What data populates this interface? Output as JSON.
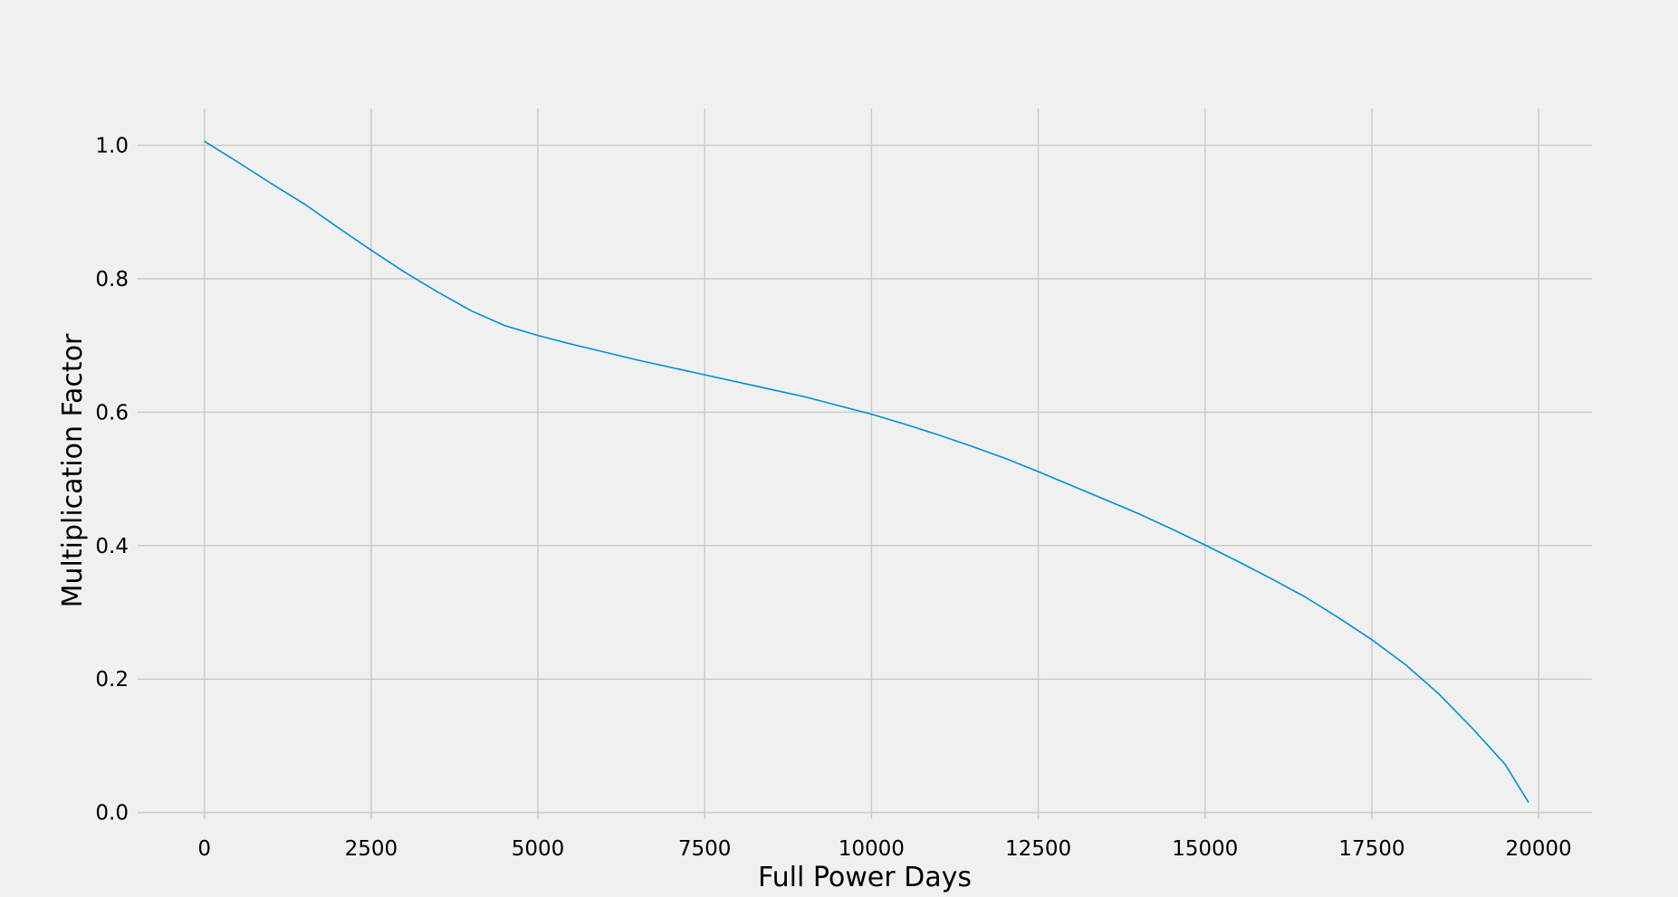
{
  "chart_data": {
    "type": "line",
    "title": "",
    "xlabel": "Full Power Days",
    "ylabel": "Multiplication Factor",
    "xlim": [
      -1000,
      20800
    ],
    "ylim": [
      -0.01,
      1.055
    ],
    "xticks": [
      0,
      2500,
      5000,
      7500,
      10000,
      12500,
      15000,
      17500,
      20000
    ],
    "xtick_labels": [
      "0",
      "2500",
      "5000",
      "7500",
      "10000",
      "12500",
      "15000",
      "17500",
      "20000"
    ],
    "yticks": [
      0.0,
      0.2,
      0.4,
      0.6,
      0.8,
      1.0
    ],
    "ytick_labels": [
      "0.0",
      "0.2",
      "0.4",
      "0.6",
      "0.8",
      "1.0"
    ],
    "grid": true,
    "legend": "none",
    "colors": {
      "background": "#f0f0f0",
      "line": "#008fd5",
      "grid": "#cbcbcb"
    },
    "series": [
      {
        "x": [
          0,
          500,
          1000,
          1500,
          2000,
          2500,
          3000,
          3500,
          4000,
          4500,
          5000,
          5500,
          6000,
          6500,
          7000,
          7500,
          8000,
          8500,
          9000,
          9500,
          10000,
          10500,
          11000,
          11500,
          12000,
          12500,
          13000,
          13500,
          14000,
          14500,
          15000,
          15500,
          16000,
          16500,
          17000,
          17500,
          18000,
          18500,
          19000,
          19500,
          19850
        ],
        "y": [
          1.006,
          0.975,
          0.943,
          0.912,
          0.877,
          0.843,
          0.81,
          0.78,
          0.752,
          0.73,
          0.715,
          0.702,
          0.69,
          0.678,
          0.667,
          0.656,
          0.645,
          0.634,
          0.623,
          0.61,
          0.597,
          0.582,
          0.566,
          0.549,
          0.531,
          0.511,
          0.49,
          0.469,
          0.448,
          0.425,
          0.401,
          0.376,
          0.35,
          0.323,
          0.292,
          0.259,
          0.222,
          0.178,
          0.127,
          0.072,
          0.015
        ]
      }
    ]
  }
}
